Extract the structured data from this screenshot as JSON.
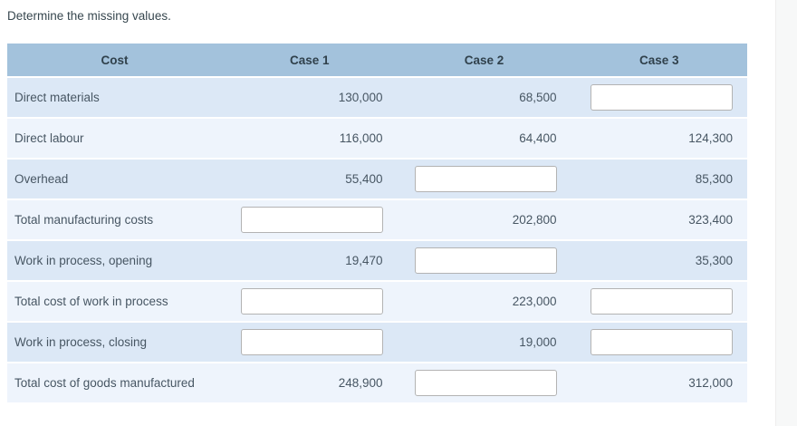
{
  "title": "Determine the missing values.",
  "table": {
    "headers": [
      "Cost",
      "Case 1",
      "Case 2",
      "Case 3"
    ],
    "rows": [
      {
        "label": "Direct materials",
        "case1": "130,000",
        "case2": "68,500",
        "case3": null
      },
      {
        "label": "Direct labour",
        "case1": "116,000",
        "case2": "64,400",
        "case3": "124,300"
      },
      {
        "label": "Overhead",
        "case1": "55,400",
        "case2": null,
        "case3": "85,300"
      },
      {
        "label": "Total manufacturing costs",
        "case1": null,
        "case2": "202,800",
        "case3": "323,400"
      },
      {
        "label": "Work in process, opening",
        "case1": "19,470",
        "case2": null,
        "case3": "35,300"
      },
      {
        "label": "Total cost of work in process",
        "case1": null,
        "case2": "223,000",
        "case3": null
      },
      {
        "label": "Work in process, closing",
        "case1": null,
        "case2": "19,000",
        "case3": null
      },
      {
        "label": "Total cost of goods manufactured",
        "case1": "248,900",
        "case2": null,
        "case3": "312,000"
      }
    ],
    "input_value": "",
    "input_placeholder": ""
  },
  "colors": {
    "header_bg": "#a3c2dc",
    "row_odd_bg": "#dce8f6",
    "row_even_bg": "#eef4fc",
    "header_text": "#30414c",
    "cell_text": "#475663",
    "input_border": "#b3b3b3",
    "side_strip_bg": "#f7f8f8",
    "page_bg": "#ffffff"
  }
}
